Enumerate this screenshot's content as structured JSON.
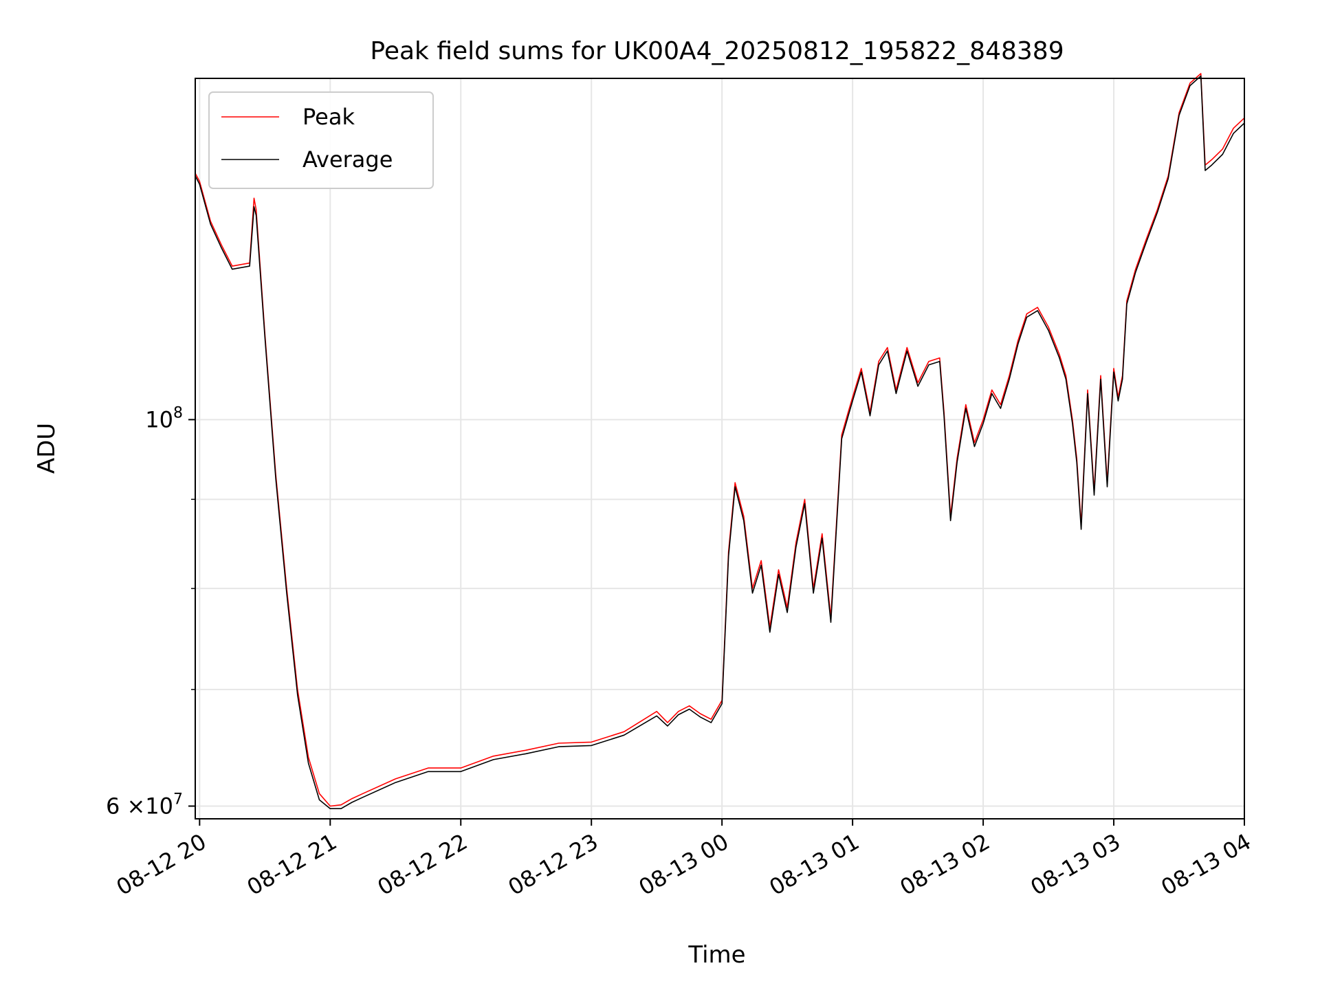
{
  "chart_data": {
    "type": "line",
    "title": "Peak field sums for UK00A4_20250812_195822_848389",
    "xlabel": "Time",
    "ylabel": "ADU",
    "yscale": "log",
    "ylim": [
      59000000,
      157000000
    ],
    "xlim": [
      "2025-08-12 19:58",
      "2025-08-13 04:00"
    ],
    "grid": true,
    "legend_position": "top-left",
    "x_ticks": [
      "08-12 20",
      "08-12 21",
      "08-12 22",
      "08-12 23",
      "08-13 00",
      "08-13 01",
      "08-13 02",
      "08-13 03",
      "08-13 04"
    ],
    "y_tick_labels": [
      {
        "value": 60000000,
        "mantissa": "6",
        "times": "×10",
        "exponent": "7"
      },
      {
        "value": 100000000,
        "mantissa": "",
        "times": "10",
        "exponent": "8"
      }
    ],
    "y_minor_ticks": [
      70000000,
      80000000,
      90000000
    ],
    "x": [
      "2025-08-12 19:58",
      "2025-08-12 20:00",
      "2025-08-12 20:05",
      "2025-08-12 20:10",
      "2025-08-12 20:15",
      "2025-08-12 20:23",
      "2025-08-12 20:25",
      "2025-08-12 20:26",
      "2025-08-12 20:30",
      "2025-08-12 20:35",
      "2025-08-12 20:40",
      "2025-08-12 20:45",
      "2025-08-12 20:50",
      "2025-08-12 20:55",
      "2025-08-12 21:00",
      "2025-08-12 21:05",
      "2025-08-12 21:10",
      "2025-08-12 21:15",
      "2025-08-12 21:30",
      "2025-08-12 21:45",
      "2025-08-12 22:00",
      "2025-08-12 22:15",
      "2025-08-12 22:30",
      "2025-08-12 22:45",
      "2025-08-12 23:00",
      "2025-08-12 23:15",
      "2025-08-12 23:30",
      "2025-08-12 23:35",
      "2025-08-12 23:40",
      "2025-08-12 23:45",
      "2025-08-12 23:50",
      "2025-08-12 23:55",
      "2025-08-13 00:00",
      "2025-08-13 00:03",
      "2025-08-13 00:06",
      "2025-08-13 00:10",
      "2025-08-13 00:14",
      "2025-08-13 00:18",
      "2025-08-13 00:22",
      "2025-08-13 00:26",
      "2025-08-13 00:30",
      "2025-08-13 00:34",
      "2025-08-13 00:38",
      "2025-08-13 00:42",
      "2025-08-13 00:46",
      "2025-08-13 00:50",
      "2025-08-13 00:55",
      "2025-08-13 00:58",
      "2025-08-13 01:00",
      "2025-08-13 01:04",
      "2025-08-13 01:08",
      "2025-08-13 01:12",
      "2025-08-13 01:16",
      "2025-08-13 01:20",
      "2025-08-13 01:25",
      "2025-08-13 01:30",
      "2025-08-13 01:35",
      "2025-08-13 01:40",
      "2025-08-13 01:42",
      "2025-08-13 01:45",
      "2025-08-13 01:48",
      "2025-08-13 01:52",
      "2025-08-13 01:56",
      "2025-08-13 02:00",
      "2025-08-13 02:04",
      "2025-08-13 02:08",
      "2025-08-13 02:12",
      "2025-08-13 02:16",
      "2025-08-13 02:20",
      "2025-08-13 02:25",
      "2025-08-13 02:30",
      "2025-08-13 02:35",
      "2025-08-13 02:38",
      "2025-08-13 02:41",
      "2025-08-13 02:43",
      "2025-08-13 02:45",
      "2025-08-13 02:48",
      "2025-08-13 02:51",
      "2025-08-13 02:54",
      "2025-08-13 02:57",
      "2025-08-13 03:00",
      "2025-08-13 03:02",
      "2025-08-13 03:04",
      "2025-08-13 03:06",
      "2025-08-13 03:10",
      "2025-08-13 03:15",
      "2025-08-13 03:20",
      "2025-08-13 03:25",
      "2025-08-13 03:30",
      "2025-08-13 03:35",
      "2025-08-13 03:40",
      "2025-08-13 03:42",
      "2025-08-13 03:45",
      "2025-08-13 03:50",
      "2025-08-13 03:55",
      "2025-08-13 04:00"
    ],
    "series": [
      {
        "name": "Peak",
        "color": "#ff0000",
        "values": [
          138500000,
          137000000,
          130000000,
          126000000,
          122500000,
          123000000,
          134000000,
          132000000,
          112000000,
          93000000,
          80000000,
          70000000,
          64000000,
          61000000,
          60000000,
          60100000,
          60600000,
          61000000,
          62200000,
          63100000,
          63100000,
          64100000,
          64600000,
          65200000,
          65300000,
          66200000,
          68000000,
          67000000,
          68000000,
          68500000,
          67800000,
          67300000,
          69000000,
          84000000,
          92000000,
          88000000,
          80000000,
          83000000,
          76000000,
          82000000,
          78000000,
          85000000,
          90000000,
          80000000,
          86000000,
          77000000,
          98000000,
          101000000,
          103000000,
          107000000,
          101000000,
          108000000,
          110000000,
          104000000,
          110000000,
          105000000,
          108000000,
          108500000,
          101000000,
          88000000,
          95000000,
          102000000,
          97000000,
          100000000,
          104000000,
          102000000,
          106000000,
          111000000,
          115000000,
          116000000,
          113000000,
          109000000,
          106000000,
          100000000,
          95000000,
          87000000,
          104000000,
          91000000,
          106000000,
          92000000,
          107000000,
          103000000,
          106000000,
          117000000,
          122000000,
          127000000,
          132000000,
          138000000,
          150000000,
          156000000,
          158000000,
          140000000,
          141000000,
          143000000,
          147000000,
          149000000
        ]
      },
      {
        "name": "Average",
        "color": "#000000",
        "values": [
          138000000,
          136500000,
          129500000,
          125500000,
          122000000,
          122500000,
          132500000,
          131000000,
          111500000,
          92500000,
          79500000,
          69500000,
          63500000,
          60500000,
          59800000,
          59800000,
          60300000,
          60700000,
          61900000,
          62800000,
          62800000,
          63800000,
          64300000,
          64900000,
          65000000,
          65900000,
          67600000,
          66700000,
          67700000,
          68200000,
          67500000,
          67000000,
          68700000,
          83500000,
          91500000,
          87500000,
          79500000,
          82500000,
          75500000,
          81500000,
          77500000,
          84500000,
          89500000,
          79500000,
          85500000,
          76500000,
          97500000,
          100500000,
          102500000,
          106500000,
          100500000,
          107500000,
          109500000,
          103500000,
          109500000,
          104500000,
          107500000,
          108000000,
          100500000,
          87500000,
          94500000,
          101500000,
          96500000,
          99500000,
          103500000,
          101500000,
          105500000,
          110500000,
          114500000,
          115500000,
          112500000,
          108500000,
          105500000,
          99500000,
          94500000,
          86500000,
          103500000,
          90500000,
          105500000,
          91500000,
          106500000,
          102500000,
          105500000,
          116500000,
          121500000,
          126500000,
          131500000,
          137500000,
          149500000,
          155500000,
          157500000,
          139000000,
          140000000,
          142000000,
          146000000,
          148000000
        ]
      }
    ]
  }
}
